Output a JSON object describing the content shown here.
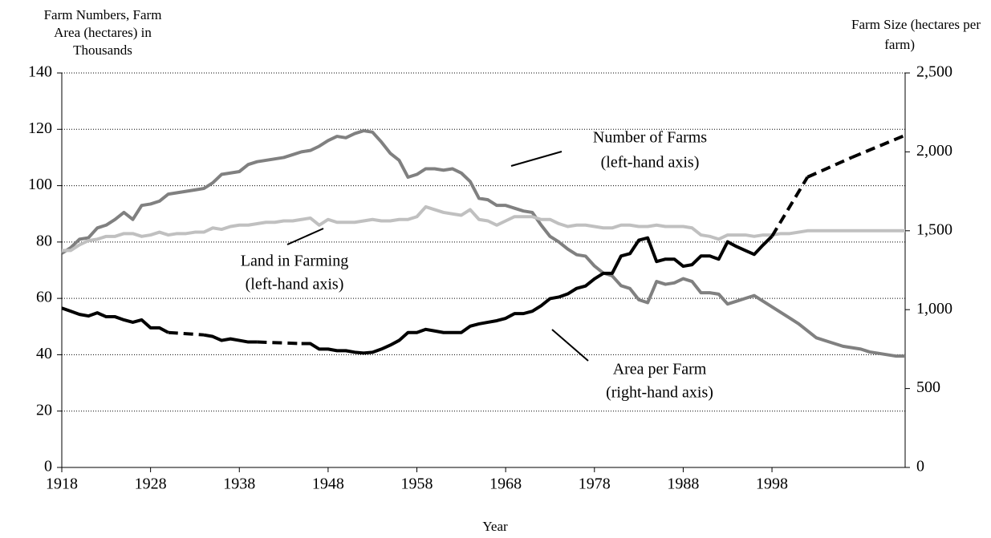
{
  "chart_data": {
    "type": "line",
    "x_label": "Year",
    "y_label": [
      "Farm Numbers, Farm",
      "Area (hectares) in",
      "Thousands"
    ],
    "y2_label": [
      "Farm Size (hectares per",
      "farm)"
    ],
    "x": [
      1918,
      1919,
      1920,
      1921,
      1922,
      1923,
      1924,
      1925,
      1926,
      1927,
      1928,
      1929,
      1930,
      1931,
      1932,
      1933,
      1934,
      1935,
      1936,
      1937,
      1938,
      1939,
      1940,
      1941,
      1942,
      1943,
      1944,
      1945,
      1946,
      1947,
      1948,
      1949,
      1950,
      1951,
      1952,
      1953,
      1954,
      1955,
      1956,
      1957,
      1958,
      1959,
      1960,
      1961,
      1962,
      1963,
      1964,
      1965,
      1966,
      1967,
      1968,
      1969,
      1970,
      1971,
      1972,
      1973,
      1974,
      1975,
      1976,
      1977,
      1978,
      1979,
      1980,
      1981,
      1982,
      1983,
      1984,
      1985,
      1986,
      1987,
      1988,
      1989,
      1990,
      1991,
      1992,
      1993,
      1994,
      1995,
      1996,
      1997,
      1998,
      1999,
      2000,
      2001,
      2002,
      2003,
      2004,
      2005,
      2006,
      2007,
      2008,
      2009,
      2010,
      2011,
      2012,
      2013
    ],
    "xlim": [
      1918,
      2013
    ],
    "xticks": [
      1918,
      1928,
      1938,
      1948,
      1958,
      1968,
      1978,
      1988,
      1998
    ],
    "ylim": [
      0,
      140
    ],
    "yticks": [
      0,
      20,
      40,
      60,
      80,
      100,
      120,
      140
    ],
    "y2lim": [
      0,
      2500
    ],
    "y2ticks": [
      0,
      500,
      {
        "value": 1000,
        "label": "1,000"
      },
      {
        "value": 1500,
        "label": "1,500"
      },
      {
        "value": 2000,
        "label": "2,000"
      },
      {
        "value": 2500,
        "label": "2,500"
      }
    ],
    "grid": true,
    "gap_style": "dashed",
    "series": [
      {
        "name": "Number of Farms",
        "axis_note": "(left-hand axis)",
        "color": "#808080",
        "values": [
          76,
          78,
          81,
          81.5,
          85,
          86,
          88,
          90.5,
          88,
          93,
          93.5,
          94.5,
          97,
          97.5,
          98,
          98.5,
          99,
          101,
          104,
          104.5,
          105,
          107.5,
          108.5,
          109,
          109.5,
          110,
          111,
          112,
          112.5,
          114,
          116,
          117.5,
          117,
          118.5,
          119.5,
          119,
          115.5,
          111.5,
          109,
          103,
          104,
          106,
          106,
          105.5,
          106,
          104.5,
          101.5,
          95.5,
          95,
          93,
          93,
          92,
          91,
          90.5,
          86,
          82,
          80,
          77.5,
          75.5,
          75,
          71.5,
          69,
          68,
          64.5,
          63.5,
          59.5,
          58.5,
          66,
          65,
          65.5,
          67,
          66,
          62,
          62,
          61.5,
          58,
          59,
          60,
          61,
          59,
          57,
          55,
          53,
          51,
          48.5,
          46,
          45,
          44,
          43,
          42.5,
          42,
          41,
          40.5,
          40,
          39.5,
          39.5
        ]
      },
      {
        "name": "Land in Farming",
        "axis_note": "(left-hand axis)",
        "color": "#c0c0c0",
        "values": [
          77,
          77,
          79,
          80.5,
          81,
          82,
          82,
          83,
          83,
          82,
          82.5,
          83.5,
          82.5,
          83,
          83,
          83.5,
          83.5,
          85,
          84.5,
          85.5,
          86,
          86,
          86.5,
          87,
          87,
          87.5,
          87.5,
          88,
          88.5,
          86,
          88,
          87,
          87,
          87,
          87.5,
          88,
          87.5,
          87.5,
          88,
          88,
          89,
          92.5,
          91.5,
          90.5,
          90,
          89.5,
          91.5,
          88,
          87.5,
          86,
          87.5,
          89,
          89,
          89,
          88,
          88,
          86.5,
          85.5,
          86,
          86,
          85.5,
          85,
          85,
          86,
          86,
          85.5,
          85.5,
          86,
          85.5,
          85.5,
          85.5,
          85,
          82.5,
          82,
          81,
          82.5,
          82.5,
          82.5,
          82,
          82.5,
          82.5,
          83,
          83,
          83.5,
          84,
          84,
          84,
          84,
          84,
          84,
          84,
          84,
          84,
          84,
          84,
          84
        ]
      },
      {
        "name": "Area per Farm",
        "axis_note": "(right-hand axis)",
        "color": "#000000",
        "axis": "y2",
        "values": [
          1010,
          990,
          970,
          960,
          980,
          955,
          955,
          935,
          920,
          935,
          885,
          885,
          855,
          null,
          null,
          null,
          840,
          830,
          805,
          815,
          805,
          795,
          795,
          null,
          null,
          null,
          null,
          785,
          785,
          750,
          750,
          740,
          740,
          730,
          725,
          730,
          750,
          775,
          805,
          855,
          855,
          875,
          865,
          855,
          855,
          855,
          895,
          910,
          920,
          930,
          945,
          975,
          975,
          990,
          1025,
          1070,
          1080,
          1100,
          1135,
          1150,
          1195,
          1230,
          1230,
          1340,
          1355,
          1440,
          1455,
          1305,
          1320,
          1320,
          1275,
          1285,
          1340,
          1340,
          1320,
          1430,
          1400,
          1375,
          1350,
          1410,
          1465,
          null,
          null,
          null,
          1840,
          null,
          null,
          null,
          null,
          1965,
          null,
          null,
          null,
          null,
          null,
          2105
        ]
      }
    ]
  }
}
